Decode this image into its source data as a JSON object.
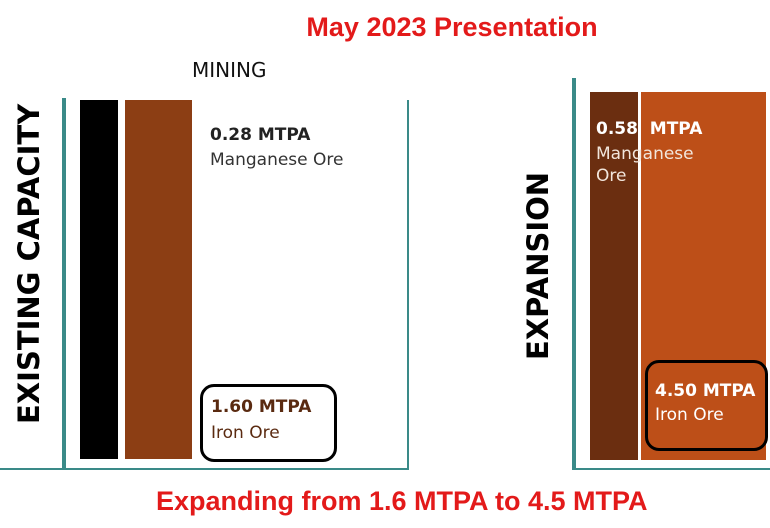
{
  "title": "May 2023 Presentation",
  "section": "MINING",
  "existing": {
    "label": "EXISTING CAPACITY",
    "manganese_value": "0.28 MTPA",
    "manganese_name": "Manganese Ore",
    "iron_value": "1.60 MTPA",
    "iron_name": "Iron Ore"
  },
  "expansion": {
    "label": "EXPANSION",
    "manganese_value": "0.58  MTPA",
    "manganese_name_1": "Manganese",
    "manganese_name_2": "Ore",
    "iron_value": "4.50 MTPA",
    "iron_name": "Iron Ore"
  },
  "footer": "Expanding from 1.6 MTPA to 4.5 MTPA",
  "colors": {
    "title_red": "#e31a1a",
    "teal": "#3a8a88",
    "existing_black": "#000000",
    "existing_brown": "#8c3e14",
    "expansion_dark_brown": "#6b2e10",
    "expansion_orange": "#bd4f18"
  }
}
